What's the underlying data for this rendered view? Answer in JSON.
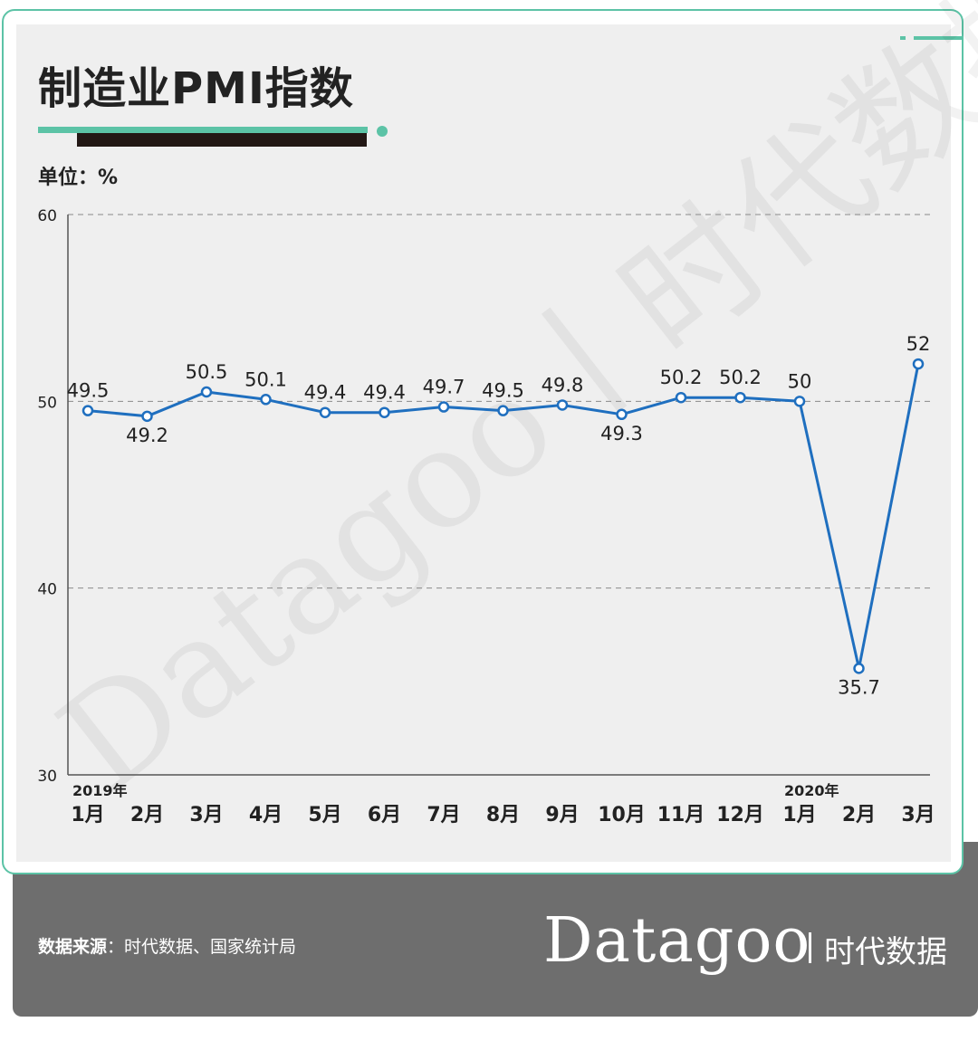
{
  "title": "制造业PMI指数",
  "unit_label": "单位：%",
  "watermark": "Datagoo丨时代数据",
  "footer": {
    "source_label": "数据来源",
    "source_text": "：时代数据、国家统计局",
    "brand": "Datagoo",
    "brand_cn": "时代数据"
  },
  "colors": {
    "accent": "#5cc3a6",
    "line": "#1f6fbf",
    "dark_bar": "#231815",
    "footer_bg": "#6e6e6e",
    "panel_bg": "#efefef"
  },
  "chart_data": {
    "type": "line",
    "categories": [
      "1月",
      "2月",
      "3月",
      "4月",
      "5月",
      "6月",
      "7月",
      "8月",
      "9月",
      "10月",
      "11月",
      "12月",
      "1月",
      "2月",
      "3月"
    ],
    "year_labels": [
      {
        "index": 0,
        "label": "2019年"
      },
      {
        "index": 12,
        "label": "2020年"
      }
    ],
    "series": [
      {
        "values": [
          49.5,
          49.2,
          50.5,
          50.1,
          49.4,
          49.4,
          49.7,
          49.5,
          49.8,
          49.3,
          50.2,
          50.2,
          50,
          35.7,
          52
        ],
        "labels": [
          "49.5",
          "49.2",
          "50.5",
          "50.1",
          "49.4",
          "49.4",
          "49.7",
          "49.5",
          "49.8",
          "49.3",
          "50.2",
          "50.2",
          "50",
          "35.7",
          "52"
        ],
        "label_position": [
          "above",
          "below",
          "above",
          "above",
          "above",
          "above",
          "above",
          "above",
          "above",
          "below",
          "above",
          "above",
          "above",
          "below",
          "above"
        ]
      }
    ],
    "y_ticks": [
      "30",
      "40",
      "50",
      "60"
    ],
    "ylim": [
      30,
      60
    ],
    "grid": "dashed horizontal",
    "legend": "none"
  }
}
